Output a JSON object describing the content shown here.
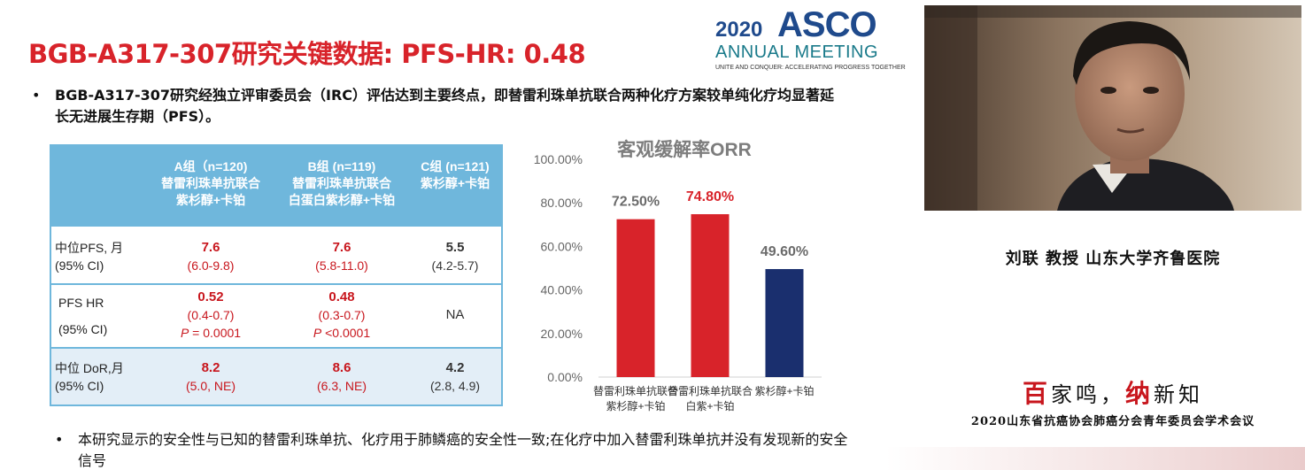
{
  "slide": {
    "title": "BGB-A317-307研究关键数据: PFS-HR: 0.48",
    "bullets": [
      "BGB-A317-307研究经独立评审委员会（IRC）评估达到主要终点，即替雷利珠单抗联合两种化疗方案较单纯化疗均显著延长无进展生存期（PFS）。",
      "本研究显示的安全性与已知的替雷利珠单抗、化疗用于肺鳞癌的安全性一致;在化疗中加入替雷利珠单抗并没有发现新的安全信号"
    ],
    "bullet_char": "•"
  },
  "logo": {
    "year": "2020",
    "name": "ASCO",
    "meeting": "ANNUAL MEETING",
    "tagline": "UNITE AND CONQUER: ACCELERATING PROGRESS TOGETHER",
    "colors": {
      "name": "#1f4a8c",
      "meeting": "#1a7a8a"
    }
  },
  "table": {
    "headers": [
      {
        "line1": "A组（n=120)",
        "line2": "替雷利珠单抗联合",
        "line3": "紫杉醇+卡铂"
      },
      {
        "line1": "B组 (n=119)",
        "line2": "替雷利珠单抗联合",
        "line3": "白蛋白紫杉醇+卡铂"
      },
      {
        "line1": "C组 (n=121)",
        "line2": "紫杉醇+卡铂",
        "line3": ""
      }
    ],
    "rows": [
      {
        "label1": "中位PFS, 月",
        "label2": "(95% CI)",
        "a": {
          "value": "7.6",
          "ci": "(6.0-9.8)"
        },
        "b": {
          "value": "7.6",
          "ci": "(5.8-11.0)"
        },
        "c": {
          "value": "5.5",
          "ci": "(4.2-5.7)"
        }
      },
      {
        "label1": "PFS HR",
        "label2": "(95% CI)",
        "a": {
          "value": "0.52",
          "ci": "(0.4-0.7)",
          "p_label": "P",
          "p_value": " = 0.0001"
        },
        "b": {
          "value": "0.48",
          "ci": "(0.3-0.7)",
          "p_label": "P",
          "p_value": " <0.0001"
        },
        "c": {
          "value": "NA"
        }
      },
      {
        "label1": "中位 DoR,月",
        "label2": "(95% CI)",
        "a": {
          "value": "8.2",
          "ci": "(5.0, NE)"
        },
        "b": {
          "value": "8.6",
          "ci": "(6.3, NE)"
        },
        "c": {
          "value": "4.2",
          "ci": "(2.8, 4.9)"
        }
      }
    ],
    "colors": {
      "header": "#6fb7dc",
      "stripe": "#e3eef7",
      "highlight": "#c8161d"
    }
  },
  "chart_data": {
    "type": "bar",
    "title": "客观缓解率ORR",
    "categories": [
      [
        "替雷利珠单抗联合",
        "紫杉醇+卡铂"
      ],
      [
        "替雷利珠单抗联合",
        "白紫+卡铂"
      ],
      [
        "紫杉醇+卡铂"
      ]
    ],
    "values": [
      72.5,
      74.8,
      49.6
    ],
    "data_labels": [
      "72.50%",
      "74.80%",
      "49.60%"
    ],
    "label_colors": [
      "#6b6b6b",
      "#d8232a",
      "#6b6b6b"
    ],
    "bar_colors": [
      "#d8232a",
      "#d8232a",
      "#1a2f6e"
    ],
    "ylim": [
      0,
      100
    ],
    "yticks": [
      "0.00%",
      "20.00%",
      "40.00%",
      "60.00%",
      "80.00%",
      "100.00%"
    ],
    "grid": false
  },
  "speaker": {
    "caption": "刘联  教授  山东大学齐鲁医院"
  },
  "event": {
    "slogan_parts": [
      "百",
      "家鸣，",
      "纳",
      "新知"
    ],
    "name": "2020山东省抗癌协会肺癌分会青年委员会学术会议"
  }
}
